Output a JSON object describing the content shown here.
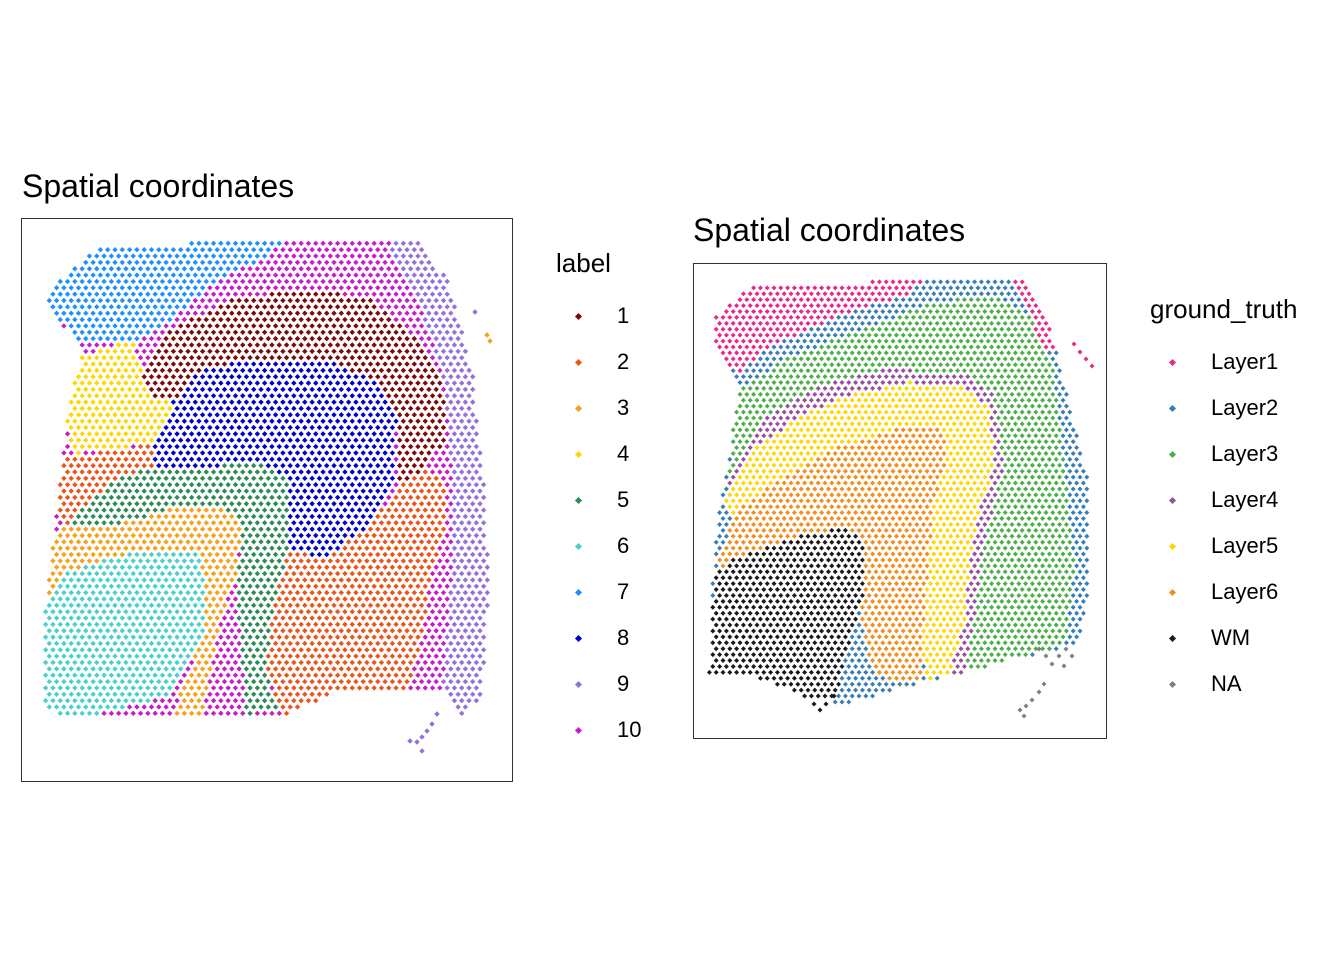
{
  "panels": [
    {
      "title": "Spatial coordinates",
      "legend_title": "label",
      "legend": [
        {
          "label": "1",
          "color": "#7B0A0A"
        },
        {
          "label": "2",
          "color": "#E8561B"
        },
        {
          "label": "3",
          "color": "#F6A11B"
        },
        {
          "label": "4",
          "color": "#FFD700"
        },
        {
          "label": "5",
          "color": "#2E8B57"
        },
        {
          "label": "6",
          "color": "#48D1CC"
        },
        {
          "label": "7",
          "color": "#1E90FF"
        },
        {
          "label": "8",
          "color": "#0000CD"
        },
        {
          "label": "9",
          "color": "#9370DB"
        },
        {
          "label": "10",
          "color": "#C71CC7"
        }
      ]
    },
    {
      "title": "Spatial coordinates",
      "legend_title": "ground_truth",
      "legend": [
        {
          "label": "Layer1",
          "color": "#E7298A"
        },
        {
          "label": "Layer2",
          "color": "#377EB8"
        },
        {
          "label": "Layer3",
          "color": "#4DAF4A"
        },
        {
          "label": "Layer4",
          "color": "#984EA3"
        },
        {
          "label": "Layer5",
          "color": "#FFD700"
        },
        {
          "label": "Layer6",
          "color": "#F28E1C"
        },
        {
          "label": "WM",
          "color": "#1A1A1A"
        },
        {
          "label": "NA",
          "color": "#808080"
        }
      ]
    }
  ],
  "chart_data": [
    {
      "type": "scatter",
      "title": "Spatial coordinates",
      "legend_title": "label",
      "categories": [
        "1",
        "2",
        "3",
        "4",
        "5",
        "6",
        "7",
        "8",
        "9",
        "10"
      ],
      "xlabel": "",
      "ylabel": "",
      "grid": false,
      "legend_position": "right"
    },
    {
      "type": "scatter",
      "title": "Spatial coordinates",
      "legend_title": "ground_truth",
      "categories": [
        "Layer1",
        "Layer2",
        "Layer3",
        "Layer4",
        "Layer5",
        "Layer6",
        "WM",
        "NA"
      ],
      "xlabel": "",
      "ylabel": "",
      "grid": false,
      "legend_position": "right"
    }
  ]
}
